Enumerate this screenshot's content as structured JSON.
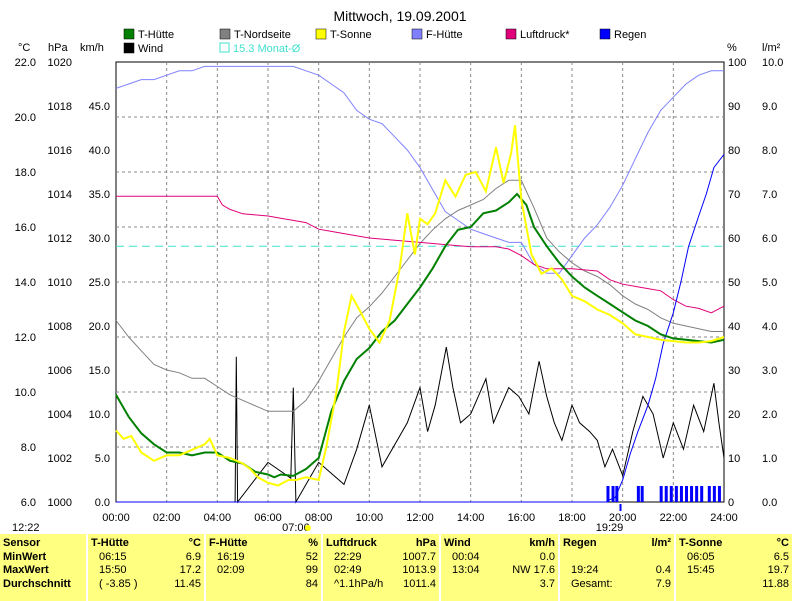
{
  "chart_data": {
    "type": "line",
    "title": "Mittwoch, 19.09.2001",
    "axes": {
      "temp_c": {
        "unit": "°C",
        "range": [
          6,
          22
        ],
        "ticks": [
          "6.0",
          "8.0",
          "10.0",
          "12.0",
          "14.0",
          "16.0",
          "18.0",
          "20.0",
          "22.0"
        ]
      },
      "pressure_hpa": {
        "unit": "hPa",
        "range": [
          1000,
          1020
        ],
        "ticks": [
          "1000",
          "1002",
          "1004",
          "1006",
          "1008",
          "1010",
          "1012",
          "1014",
          "1016",
          "1018",
          "1020"
        ]
      },
      "wind_kmh": {
        "unit": "km/h",
        "range": [
          0,
          50
        ],
        "ticks": [
          "0.0",
          "5.0",
          "10.0",
          "15.0",
          "20.0",
          "25.0",
          "30.0",
          "35.0",
          "40.0",
          "45.0"
        ]
      },
      "humidity_pct": {
        "unit": "%",
        "range": [
          0,
          100
        ],
        "ticks": [
          "0",
          "10",
          "20",
          "30",
          "40",
          "50",
          "60",
          "70",
          "80",
          "90",
          "100"
        ]
      },
      "rain_lm2": {
        "unit": "l/m²",
        "range": [
          0,
          10
        ],
        "ticks": [
          "0.0",
          "1.0",
          "2.0",
          "3.0",
          "4.0",
          "5.0",
          "6.0",
          "7.0",
          "8.0",
          "9.0",
          "10.0"
        ]
      },
      "time": {
        "ticks": [
          "00:00",
          "02:00",
          "04:00",
          "06:00",
          "08:00",
          "10:00",
          "12:00",
          "14:00",
          "16:00",
          "18:00",
          "20:00",
          "22:00",
          "24:00"
        ]
      }
    },
    "markers": [
      {
        "label": "12:22",
        "hour": 12.37
      },
      {
        "label": "07:06",
        "hour": 7.1
      },
      {
        "label": "19:29",
        "hour": 19.48
      }
    ],
    "legend": [
      {
        "name": "T-Hütte",
        "color": "#008000",
        "key": "t_huette"
      },
      {
        "name": "T-Nordseite",
        "color": "#808080",
        "key": "t_nord"
      },
      {
        "name": "T-Sonne",
        "color": "#ffff00",
        "key": "t_sonne"
      },
      {
        "name": "F-Hütte",
        "color": "#8080ff",
        "key": "f_huette"
      },
      {
        "name": "Luftdruck*",
        "color": "#e0007a",
        "key": "luftdruck"
      },
      {
        "name": "Regen",
        "color": "#0000ff",
        "key": "regen"
      },
      {
        "name": "Wind",
        "color": "#000000",
        "key": "wind"
      },
      {
        "name": "15.3 Monat-Ø",
        "color": "#40e0d0",
        "key": "monat"
      }
    ],
    "series": {
      "t_huette": {
        "axis": "temp_c",
        "color": "#008000",
        "x": [
          0,
          0.5,
          1,
          1.5,
          2,
          2.5,
          3,
          3.5,
          4,
          4.5,
          5,
          5.5,
          6,
          6.25,
          6.5,
          7,
          7.5,
          8,
          8.5,
          9,
          9.5,
          10,
          10.5,
          11,
          11.5,
          12,
          12.5,
          13,
          13.5,
          14,
          14.5,
          15,
          15.5,
          15.83,
          16.2,
          16.5,
          17,
          17.5,
          18,
          18.5,
          19,
          19.5,
          20,
          20.5,
          21,
          21.5,
          22,
          22.5,
          23,
          23.5,
          24
        ],
        "y": [
          9.9,
          9.1,
          8.5,
          8.1,
          7.8,
          7.8,
          7.7,
          7.8,
          7.8,
          7.5,
          7.4,
          7.1,
          7.0,
          6.9,
          7.0,
          6.95,
          7.2,
          7.6,
          9.3,
          10.4,
          11.2,
          11.6,
          12.2,
          12.6,
          13.2,
          13.8,
          14.5,
          15.3,
          15.9,
          16.0,
          16.5,
          16.6,
          16.9,
          17.2,
          16.8,
          16.0,
          15.3,
          14.7,
          14.2,
          13.8,
          13.5,
          13.2,
          12.9,
          12.6,
          12.4,
          12.1,
          11.95,
          11.9,
          11.85,
          11.8,
          11.9
        ]
      },
      "t_nord": {
        "axis": "temp_c",
        "color": "#808080",
        "x": [
          0,
          0.5,
          1,
          1.5,
          2,
          2.5,
          3,
          3.5,
          4,
          4.5,
          5,
          5.5,
          6,
          6.5,
          7,
          7.5,
          8,
          8.5,
          9,
          9.5,
          10,
          10.5,
          11,
          11.5,
          12,
          12.5,
          13,
          13.5,
          14,
          14.5,
          15,
          15.5,
          16,
          16.5,
          17,
          17.5,
          18,
          18.5,
          19,
          19.5,
          20,
          20.5,
          21,
          21.5,
          22,
          22.5,
          23,
          23.5,
          24
        ],
        "y": [
          12.6,
          12.0,
          11.5,
          11.0,
          10.8,
          10.7,
          10.5,
          10.5,
          10.2,
          9.9,
          9.7,
          9.5,
          9.3,
          9.3,
          9.3,
          9.7,
          10.4,
          11.2,
          12.0,
          12.7,
          13.1,
          13.6,
          14.2,
          14.8,
          15.4,
          15.9,
          16.3,
          16.6,
          16.8,
          17.0,
          17.4,
          17.7,
          17.7,
          16.7,
          15.6,
          15.1,
          14.7,
          14.4,
          14.2,
          13.9,
          13.5,
          13.2,
          13.0,
          12.7,
          12.5,
          12.4,
          12.3,
          12.2,
          12.2
        ]
      },
      "t_sonne": {
        "axis": "temp_c",
        "color": "#ffff00",
        "x": [
          0,
          0.3,
          0.6,
          1,
          1.5,
          2,
          2.5,
          3,
          3.5,
          3.7,
          4,
          4.5,
          5,
          5.3,
          5.6,
          6,
          6.4,
          6.8,
          7.1,
          7.5,
          8,
          8.3,
          8.7,
          9,
          9.3,
          9.6,
          10,
          10.4,
          10.8,
          11.2,
          11.5,
          11.8,
          12.0,
          12.3,
          12.6,
          13.0,
          13.4,
          13.8,
          14.2,
          14.6,
          15.0,
          15.3,
          15.6,
          15.75,
          16.0,
          16.4,
          16.8,
          17.2,
          17.6,
          18,
          18.5,
          19,
          19.5,
          20,
          20.5,
          21,
          21.5,
          22,
          22.5,
          23,
          23.5,
          24
        ],
        "y": [
          8.6,
          8.3,
          8.4,
          7.8,
          7.5,
          7.7,
          7.7,
          7.9,
          8.1,
          8.3,
          7.7,
          7.6,
          7.4,
          7.2,
          6.9,
          6.7,
          6.6,
          6.8,
          6.8,
          6.9,
          6.8,
          8.0,
          10.0,
          12.2,
          13.5,
          13.0,
          12.3,
          11.8,
          12.6,
          14.5,
          16.5,
          15.0,
          16.3,
          16.1,
          16.5,
          17.7,
          17.1,
          17.9,
          18.0,
          17.3,
          18.9,
          17.6,
          18.7,
          19.7,
          17.0,
          15.0,
          14.3,
          14.5,
          14.1,
          13.5,
          13.3,
          13.0,
          12.8,
          12.5,
          12.1,
          12.0,
          11.9,
          11.85,
          11.8,
          11.8,
          11.85,
          12.0
        ]
      },
      "f_huette": {
        "axis": "humidity_pct",
        "color": "#8080ff",
        "x": [
          0,
          0.5,
          1,
          1.5,
          2,
          2.5,
          3,
          3.5,
          4,
          4.5,
          5,
          5.5,
          6,
          6.5,
          7,
          7.5,
          8,
          8.5,
          9,
          9.5,
          10,
          10.5,
          11,
          11.5,
          12,
          12.5,
          13,
          13.5,
          14,
          14.5,
          15,
          15.5,
          16,
          16.5,
          17,
          17.5,
          18,
          18.5,
          19,
          19.5,
          20,
          20.5,
          21,
          21.5,
          22,
          22.5,
          23,
          23.5,
          24
        ],
        "y": [
          94,
          95,
          96,
          96,
          97,
          98,
          98,
          99,
          99,
          99,
          99,
          99,
          99,
          99,
          99,
          98,
          97,
          95,
          93,
          89,
          87,
          86,
          83,
          80,
          76,
          71,
          66,
          64,
          62,
          61,
          60,
          59,
          59,
          54,
          52,
          52,
          56,
          60,
          63,
          67,
          72,
          78,
          84,
          89,
          92,
          95,
          97,
          98,
          98
        ]
      },
      "luftdruck": {
        "axis": "pressure_hpa",
        "color": "#e0007a",
        "x": [
          0,
          1,
          2,
          3,
          3.5,
          4,
          4.2,
          4.5,
          5,
          6,
          6.5,
          7,
          7.5,
          8,
          8.5,
          9,
          10,
          11,
          12,
          13,
          14,
          15,
          15.5,
          16,
          16.5,
          17,
          18,
          19,
          19.5,
          20,
          21,
          21.5,
          22,
          22.5,
          23,
          23.5,
          24
        ],
        "y": [
          1013.9,
          1013.9,
          1013.9,
          1013.9,
          1013.9,
          1013.9,
          1013.5,
          1013.3,
          1013.1,
          1013.0,
          1012.9,
          1012.8,
          1012.7,
          1012.4,
          1012.3,
          1012.2,
          1012.0,
          1011.9,
          1011.8,
          1011.7,
          1011.6,
          1011.6,
          1011.5,
          1011.2,
          1010.8,
          1010.6,
          1010.6,
          1010.5,
          1010.1,
          1009.9,
          1009.7,
          1009.6,
          1009.2,
          1008.9,
          1008.8,
          1008.6,
          1008.9
        ]
      },
      "wind": {
        "axis": "wind_kmh",
        "color": "#000000",
        "x": [
          0,
          4.7,
          4.75,
          4.8,
          6,
          6.9,
          7.0,
          7.1,
          8,
          9,
          9.5,
          10,
          10.5,
          11,
          11.5,
          12,
          12.3,
          12.6,
          13.04,
          13.3,
          13.6,
          14,
          14.3,
          14.6,
          14.9,
          15.2,
          15.5,
          15.9,
          16.3,
          16.7,
          17,
          17.3,
          17.6,
          18,
          18.3,
          18.7,
          19,
          19.3,
          19.6,
          20,
          20.4,
          20.8,
          21.2,
          21.6,
          22,
          22.4,
          22.8,
          23.2,
          23.6,
          23.8,
          24
        ],
        "y": [
          0,
          0,
          16.5,
          0,
          4.5,
          2.7,
          13,
          0,
          4.5,
          2,
          6,
          11,
          4,
          6.5,
          9,
          13,
          8,
          11,
          17.6,
          13,
          9,
          10,
          12,
          14,
          9,
          11,
          13,
          12,
          10,
          16,
          12,
          9,
          7,
          11,
          9,
          8,
          7,
          4,
          6,
          3,
          8,
          12,
          10,
          5,
          9,
          6,
          11,
          8,
          13.5,
          9,
          5
        ]
      },
      "regen": {
        "axis": "rain_lm2",
        "color": "#0000ff",
        "x": [
          0,
          19.4,
          19.48,
          19.7,
          20,
          20.3,
          20.6,
          21,
          21.3,
          21.6,
          22,
          22.3,
          22.6,
          23,
          23.3,
          23.6,
          23.8,
          24
        ],
        "y": [
          0,
          0,
          0.05,
          0.1,
          0.5,
          1.1,
          1.6,
          2.2,
          2.8,
          3.6,
          4.3,
          5.0,
          5.8,
          6.5,
          7.0,
          7.6,
          7.75,
          7.9
        ]
      },
      "monat": {
        "axis": "temp_c",
        "color": "#40e0d0",
        "x": [
          0,
          24
        ],
        "y": [
          15.3,
          15.3
        ]
      }
    },
    "rain_bars_hours": [
      19.4,
      19.6,
      19.75,
      20.6,
      20.75,
      21.5,
      21.7,
      21.9,
      22.1,
      22.3,
      22.5,
      22.7,
      22.9,
      23.1,
      23.4,
      23.6,
      23.8
    ]
  },
  "table": {
    "label_col": {
      "header": "Sensor",
      "rows": [
        "MinWert",
        "MaxWert",
        "Durchschnitt"
      ]
    },
    "blocks": [
      {
        "title": "T-Hütte",
        "unit": "°C",
        "rows": [
          [
            "06:15",
            "6.9"
          ],
          [
            "15:50",
            "17.2"
          ],
          [
            "( -3.85 )",
            "11.45"
          ]
        ]
      },
      {
        "title": "F-Hütte",
        "unit": "%",
        "rows": [
          [
            "16:19",
            "52"
          ],
          [
            "02:09",
            "99"
          ],
          [
            "",
            "84"
          ]
        ]
      },
      {
        "title": "Luftdruck",
        "unit": "hPa",
        "rows": [
          [
            "22:29",
            "1007.7"
          ],
          [
            "02:49",
            "1013.9"
          ],
          [
            "^1.1hPa/h",
            "1011.4"
          ]
        ]
      },
      {
        "title": "Wind",
        "unit": "km/h",
        "rows": [
          [
            "00:04",
            "0.0"
          ],
          [
            "13:04",
            "NW 17.6"
          ],
          [
            "",
            "3.7"
          ]
        ]
      },
      {
        "title": "Regen",
        "unit": "l/m²",
        "rows": [
          [
            "",
            ""
          ],
          [
            "19:24",
            "0.4"
          ],
          [
            "Gesamt:",
            "7.9"
          ]
        ]
      },
      {
        "title": "T-Sonne",
        "unit": "°C",
        "rows": [
          [
            "06:05",
            "6.5"
          ],
          [
            "15:45",
            "19.7"
          ],
          [
            "",
            "11.88"
          ]
        ]
      }
    ]
  }
}
